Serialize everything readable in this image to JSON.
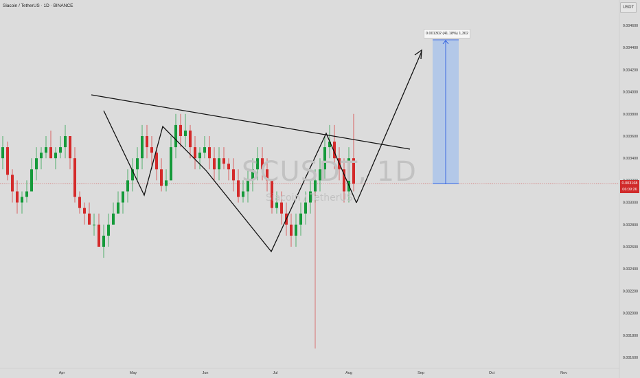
{
  "header": {
    "symbol_line": "Siacoin / TetherUS · 1D · BINANCE",
    "currency": "USDT"
  },
  "watermark": {
    "ticker": "SCUSDT, 1D",
    "pair": "Siacoin / TetherUS"
  },
  "price_tag": {
    "price": "0.003168",
    "countdown": "06:09:26"
  },
  "measure": {
    "label": "0.001302 (41.18%) 1,302"
  },
  "colors": {
    "background": "#dcdcdc",
    "up": "#159a3a",
    "down": "#d42a2a",
    "measure_fill": "#abc4ea",
    "measure_line": "#2f5fe0",
    "price_line": "#d02a2a"
  },
  "chart_data": {
    "type": "candlestick",
    "title": "Siacoin / TetherUS · 1D · BINANCE",
    "y_axis": {
      "min": 0.0016,
      "max": 0.0046,
      "step": 0.0002,
      "ticks": [
        "0.004600",
        "0.004400",
        "0.004200",
        "0.004000",
        "0.003800",
        "0.003600",
        "0.003400",
        "0.003200",
        "0.003000",
        "0.002800",
        "0.002600",
        "0.002400",
        "0.002200",
        "0.002000",
        "0.001800",
        "0.001600"
      ]
    },
    "x_axis": {
      "labels": [
        "Apr",
        "May",
        "Jun",
        "Jul",
        "Aug",
        "Sep",
        "Oct",
        "Nov"
      ]
    },
    "candles": [
      [
        0.0034,
        0.0036,
        0.0033,
        0.0035
      ],
      [
        0.0035,
        0.00355,
        0.0032,
        0.00325
      ],
      [
        0.00325,
        0.0033,
        0.003,
        0.0031
      ],
      [
        0.0031,
        0.0032,
        0.0029,
        0.003
      ],
      [
        0.003,
        0.0031,
        0.0029,
        0.00305
      ],
      [
        0.00305,
        0.0032,
        0.003,
        0.0031
      ],
      [
        0.0031,
        0.0034,
        0.0031,
        0.0033
      ],
      [
        0.0033,
        0.0035,
        0.0032,
        0.0034
      ],
      [
        0.0034,
        0.0035,
        0.0033,
        0.00345
      ],
      [
        0.00345,
        0.0036,
        0.0034,
        0.0035
      ],
      [
        0.0035,
        0.00365,
        0.0034,
        0.0034
      ],
      [
        0.0034,
        0.0035,
        0.0033,
        0.00345
      ],
      [
        0.00345,
        0.0036,
        0.0034,
        0.0035
      ],
      [
        0.0035,
        0.0037,
        0.0034,
        0.0036
      ],
      [
        0.0036,
        0.0036,
        0.0033,
        0.0034
      ],
      [
        0.0034,
        0.0035,
        0.003,
        0.00305
      ],
      [
        0.00305,
        0.0031,
        0.0029,
        0.00295
      ],
      [
        0.00295,
        0.003,
        0.0028,
        0.0029
      ],
      [
        0.0029,
        0.003,
        0.0028,
        0.0028
      ],
      [
        0.0028,
        0.0029,
        0.0027,
        0.0028
      ],
      [
        0.0028,
        0.0029,
        0.0026,
        0.0026
      ],
      [
        0.0026,
        0.0028,
        0.0025,
        0.0027
      ],
      [
        0.0027,
        0.0029,
        0.0026,
        0.0028
      ],
      [
        0.0028,
        0.003,
        0.0028,
        0.0029
      ],
      [
        0.0029,
        0.0031,
        0.0029,
        0.003
      ],
      [
        0.003,
        0.0031,
        0.0029,
        0.0031
      ],
      [
        0.0031,
        0.0033,
        0.003,
        0.0032
      ],
      [
        0.0032,
        0.0034,
        0.0031,
        0.0033
      ],
      [
        0.0033,
        0.0035,
        0.0032,
        0.0034
      ],
      [
        0.0034,
        0.0037,
        0.0033,
        0.0036
      ],
      [
        0.0036,
        0.0037,
        0.0034,
        0.0035
      ],
      [
        0.0035,
        0.0036,
        0.0033,
        0.00345
      ],
      [
        0.00345,
        0.0035,
        0.0032,
        0.0033
      ],
      [
        0.0033,
        0.0034,
        0.0031,
        0.00315
      ],
      [
        0.00315,
        0.0033,
        0.0031,
        0.0032
      ],
      [
        0.0032,
        0.0036,
        0.0032,
        0.0035
      ],
      [
        0.0035,
        0.0038,
        0.0034,
        0.0037
      ],
      [
        0.0037,
        0.0038,
        0.0035,
        0.0036
      ],
      [
        0.0036,
        0.0038,
        0.0035,
        0.00365
      ],
      [
        0.00365,
        0.0037,
        0.0034,
        0.0035
      ],
      [
        0.0035,
        0.0036,
        0.0033,
        0.0034
      ],
      [
        0.0034,
        0.0035,
        0.0033,
        0.00345
      ],
      [
        0.00345,
        0.0036,
        0.0034,
        0.0035
      ],
      [
        0.0035,
        0.0036,
        0.0033,
        0.0034
      ],
      [
        0.0034,
        0.0035,
        0.0032,
        0.0033
      ],
      [
        0.0033,
        0.0035,
        0.0032,
        0.0034
      ],
      [
        0.0034,
        0.0035,
        0.0033,
        0.00335
      ],
      [
        0.00335,
        0.0034,
        0.0032,
        0.0033
      ],
      [
        0.0033,
        0.0034,
        0.0031,
        0.0032
      ],
      [
        0.0032,
        0.0033,
        0.003,
        0.00305
      ],
      [
        0.00305,
        0.0032,
        0.003,
        0.0031
      ],
      [
        0.0031,
        0.0033,
        0.003,
        0.0032
      ],
      [
        0.0032,
        0.0034,
        0.0031,
        0.0033
      ],
      [
        0.0033,
        0.0035,
        0.0032,
        0.0034
      ],
      [
        0.0034,
        0.0035,
        0.0032,
        0.0033
      ],
      [
        0.0033,
        0.0034,
        0.0031,
        0.0032
      ],
      [
        0.0032,
        0.0032,
        0.0029,
        0.00295
      ],
      [
        0.00295,
        0.0031,
        0.0029,
        0.003
      ],
      [
        0.003,
        0.0031,
        0.0028,
        0.0029
      ],
      [
        0.0029,
        0.003,
        0.0027,
        0.0028
      ],
      [
        0.0028,
        0.0029,
        0.0026,
        0.0027
      ],
      [
        0.0027,
        0.0029,
        0.0026,
        0.0028
      ],
      [
        0.0028,
        0.003,
        0.0027,
        0.0029
      ],
      [
        0.0029,
        0.0031,
        0.0028,
        0.003
      ],
      [
        0.003,
        0.0032,
        0.0029,
        0.0031
      ],
      [
        0.0031,
        0.0033,
        0.003,
        0.0032
      ],
      [
        0.0032,
        0.0034,
        0.0031,
        0.0033
      ],
      [
        0.0033,
        0.0036,
        0.0032,
        0.0035
      ],
      [
        0.0035,
        0.0037,
        0.0034,
        0.00355
      ],
      [
        0.00355,
        0.0037,
        0.0033,
        0.0034
      ],
      [
        0.0034,
        0.0035,
        0.0032,
        0.0033
      ],
      [
        0.0033,
        0.0034,
        0.003,
        0.0031
      ],
      [
        0.0031,
        0.0035,
        0.003,
        0.0034
      ],
      [
        0.0034,
        0.0038,
        0.0031,
        0.00317
      ]
    ],
    "resistance_line": "descending trendline from late March to mid August",
    "pattern": "W zig-zag with projected breakout arrow toward ~0.0044",
    "measure_range": {
      "from": 0.003168,
      "to": 0.00447,
      "change": "0.001302 (41.18%) 1,302"
    },
    "current_price": 0.003168,
    "grid": false,
    "legend": "none"
  }
}
